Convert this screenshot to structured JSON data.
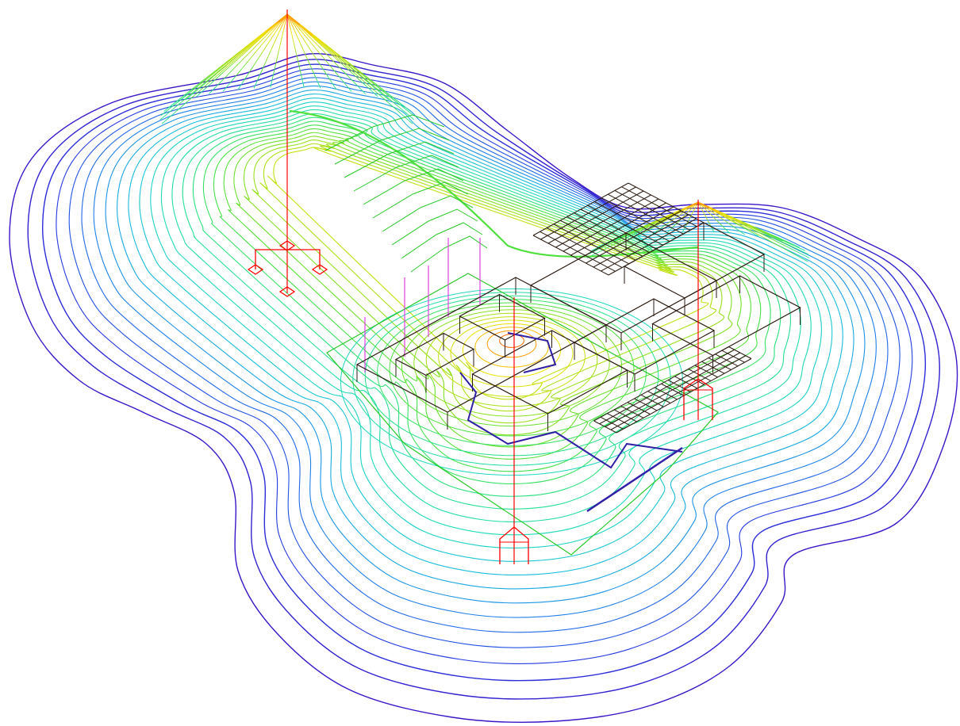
{
  "diagram": {
    "type": "isometric-wireframe-contour-plot",
    "background": "#ffffff",
    "contour_palette": [
      "#3a16c8",
      "#2438e0",
      "#1f7ce8",
      "#18b8e0",
      "#1ed8c0",
      "#25e08a",
      "#4ce040",
      "#8ce020",
      "#c8e010",
      "#f0e000",
      "#ff9a00",
      "#ff3000"
    ],
    "structure_colors": {
      "building": "#2a1a10",
      "accent": "#3020a8",
      "masts": "#ff0000",
      "poles": "#e040e0",
      "terrain": "#28c828"
    },
    "masts": [
      {
        "id": "mast-left",
        "icon": "antenna-tower-icon"
      },
      {
        "id": "mast-right",
        "icon": "antenna-tower-icon"
      },
      {
        "id": "mast-center",
        "icon": "antenna-tower-icon"
      }
    ],
    "contour_levels": 24
  }
}
